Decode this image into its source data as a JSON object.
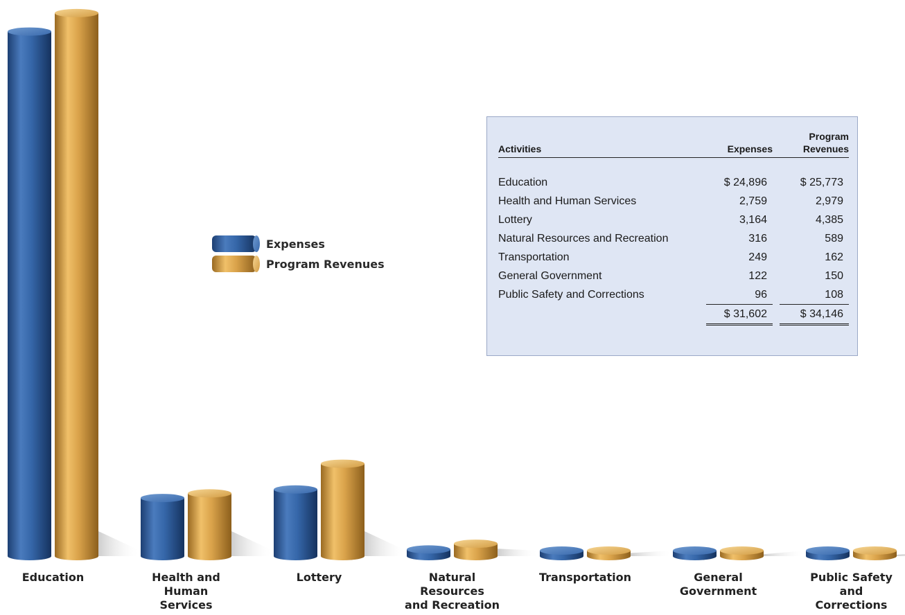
{
  "chart_data": {
    "type": "bar",
    "categories": [
      "Education",
      "Health and Human Services",
      "Lottery",
      "Natural Resources and Recreation",
      "Transportation",
      "General Government",
      "Public Safety and Corrections"
    ],
    "category_labels": [
      [
        "Education"
      ],
      [
        "Health and",
        "Human",
        "Services"
      ],
      [
        "Lottery"
      ],
      [
        "Natural",
        "Resources",
        "and Recreation"
      ],
      [
        "Transportation"
      ],
      [
        "General",
        "Government"
      ],
      [
        "Public Safety",
        "and",
        "Corrections"
      ]
    ],
    "series": [
      {
        "name": "Expenses",
        "values": [
          24896,
          2759,
          3164,
          316,
          249,
          122,
          96
        ],
        "color": "#2f5f9e"
      },
      {
        "name": "Program Revenues",
        "values": [
          25773,
          2979,
          4385,
          589,
          162,
          150,
          108
        ],
        "color": "#d19a44"
      }
    ],
    "legend_position": "upper-center",
    "grid": false,
    "ylim": [
      0,
      26000
    ]
  },
  "table": {
    "headers": {
      "activities": "Activities",
      "expenses": "Expenses",
      "revenues_line1": "Program",
      "revenues_line2": "Revenues"
    },
    "rows": [
      {
        "activity": "Education",
        "expenses": "$ 24,896",
        "revenues": "$ 25,773"
      },
      {
        "activity": "Health and Human Services",
        "expenses": "2,759",
        "revenues": "2,979"
      },
      {
        "activity": "Lottery",
        "expenses": "3,164",
        "revenues": "4,385"
      },
      {
        "activity": "Natural Resources and Recreation",
        "expenses": "316",
        "revenues": "589"
      },
      {
        "activity": "Transportation",
        "expenses": "249",
        "revenues": "162"
      },
      {
        "activity": "General Government",
        "expenses": "122",
        "revenues": "150"
      },
      {
        "activity": "Public Safety and Corrections",
        "expenses": "96",
        "revenues": "108"
      }
    ],
    "totals": {
      "expenses": "$ 31,602",
      "revenues": "$ 34,146"
    }
  }
}
